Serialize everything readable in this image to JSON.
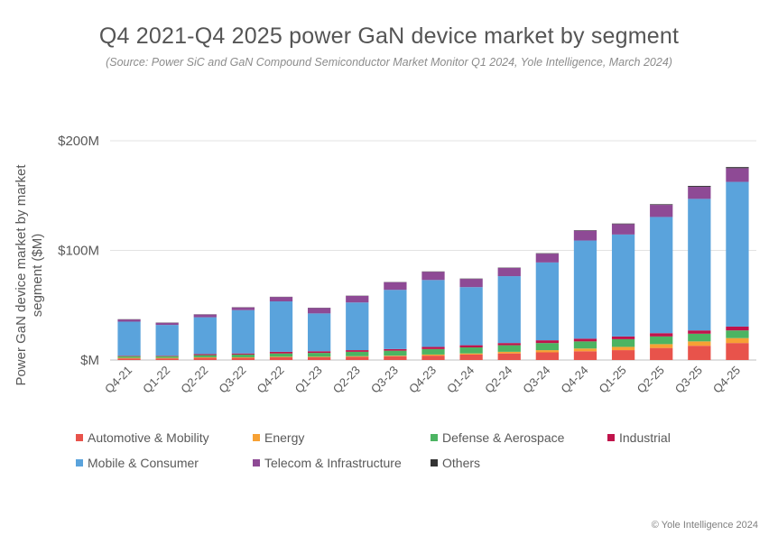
{
  "page": {
    "title": "Q4 2021-Q4 2025 power GaN device market by segment",
    "subtitle": "(Source: Power SiC and GaN Compound Semiconductor Market Monitor Q1 2024, Yole Intelligence, March 2024)",
    "copyright": "© Yole Intelligence 2024"
  },
  "chart_data": {
    "type": "bar",
    "stacked": true,
    "title": "Q4 2021-Q4 2025 power GaN device market by segment",
    "ylabel": "Power GaN device market by market segment ($M)",
    "xlabel": "",
    "ylim": [
      0,
      200
    ],
    "yticks": [
      0,
      100,
      200
    ],
    "ytick_labels": [
      "$M",
      "$100M",
      "$200M"
    ],
    "grid": true,
    "legend_position": "bottom",
    "categories": [
      "Q4-21",
      "Q1-22",
      "Q2-22",
      "Q3-22",
      "Q4-22",
      "Q1-23",
      "Q2-23",
      "Q3-23",
      "Q4-23",
      "Q1-24",
      "Q2-24",
      "Q3-24",
      "Q4-24",
      "Q1-25",
      "Q2-25",
      "Q3-25",
      "Q4-25"
    ],
    "series": [
      {
        "name": "Automotive & Mobility",
        "color": "#e8534b",
        "values": [
          1.5,
          1.5,
          2,
          2,
          2.5,
          2.5,
          3,
          3.5,
          4,
          5,
          6,
          7,
          8,
          9,
          11,
          13,
          15.5
        ]
      },
      {
        "name": "Energy",
        "color": "#f7a134",
        "values": [
          0.5,
          0.5,
          0.5,
          0.5,
          0.5,
          0.5,
          0.5,
          0.5,
          1,
          1,
          1.5,
          2,
          2.5,
          3,
          3.5,
          4,
          4.5
        ]
      },
      {
        "name": "Defense & Aerospace",
        "color": "#4cb462",
        "values": [
          1.5,
          1.5,
          2,
          2.5,
          3,
          3.5,
          4,
          4.5,
          5,
          5.5,
          6,
          6.5,
          6.5,
          7,
          7,
          7,
          7
        ]
      },
      {
        "name": "Industrial",
        "color": "#c0134b",
        "values": [
          0.5,
          0.5,
          1,
          1,
          1.5,
          1.5,
          1.5,
          1.5,
          2,
          2,
          2,
          2.5,
          2.5,
          2.5,
          3,
          3,
          3.5
        ]
      },
      {
        "name": "Mobile & Consumer",
        "color": "#5aa3dc",
        "values": [
          31,
          28,
          33.5,
          39.5,
          46,
          34.5,
          43.5,
          54,
          61,
          53,
          61,
          71,
          89.5,
          93,
          106,
          120,
          132
        ]
      },
      {
        "name": "Telecom & Infrastructure",
        "color": "#8e4a95",
        "values": [
          2,
          2,
          2.5,
          2.5,
          4,
          5,
          6,
          7,
          7.5,
          7.5,
          7.5,
          8,
          9,
          9.5,
          11,
          11,
          12.5
        ]
      },
      {
        "name": "Others",
        "color": "#333333",
        "values": [
          0.2,
          0.2,
          0.2,
          0.2,
          0.2,
          0.2,
          0.2,
          0.2,
          0.3,
          0.3,
          0.3,
          0.4,
          0.4,
          0.5,
          0.6,
          0.8,
          1
        ]
      }
    ]
  }
}
